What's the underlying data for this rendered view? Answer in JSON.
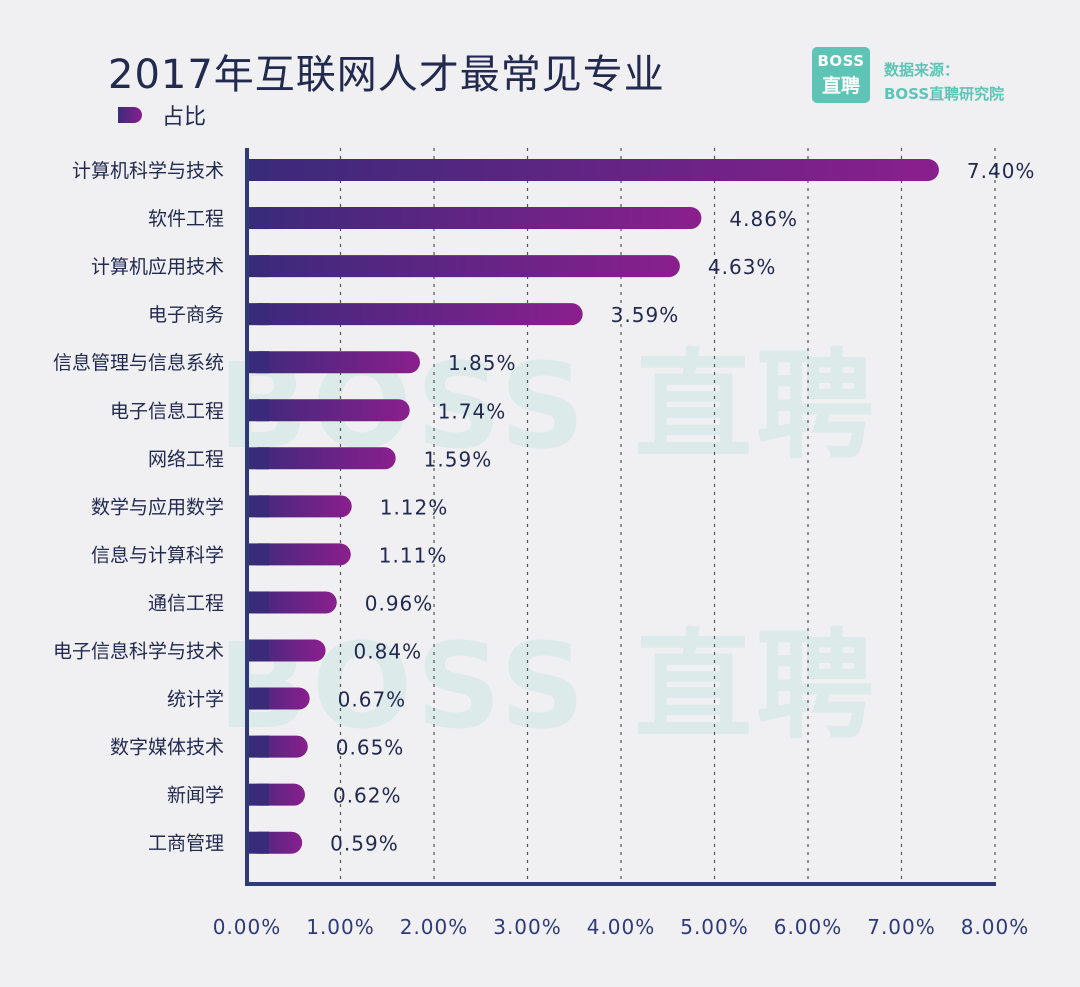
{
  "title": "2017年互联网人才最常见专业",
  "legend": {
    "label": "占比"
  },
  "logo": {
    "top": "BOSS",
    "bottom": "直聘"
  },
  "source": {
    "line1": "数据来源：",
    "line2": "BOSS直聘研究院"
  },
  "watermark": "BOSS 直聘",
  "colors": {
    "bar_start": "#3a2a7a",
    "bar_end": "#8a1f8d",
    "axis": "#2f3a7a",
    "text": "#232a4f",
    "accent": "#5ec4b6"
  },
  "chart_data": {
    "type": "bar",
    "orientation": "horizontal",
    "title": "2017年互联网人才最常见专业",
    "series": [
      {
        "name": "占比"
      }
    ],
    "categories": [
      "计算机科学与技术",
      "软件工程",
      "计算机应用技术",
      "电子商务",
      "信息管理与信息系统",
      "电子信息工程",
      "网络工程",
      "数学与应用数学",
      "信息与计算科学",
      "通信工程",
      "电子信息科学与技术",
      "统计学",
      "数字媒体技术",
      "新闻学",
      "工商管理"
    ],
    "values": [
      7.4,
      4.86,
      4.63,
      3.59,
      1.85,
      1.74,
      1.59,
      1.12,
      1.11,
      0.96,
      0.84,
      0.67,
      0.65,
      0.62,
      0.59
    ],
    "value_labels": [
      "7.40%",
      "4.86%",
      "4.63%",
      "3.59%",
      "1.85%",
      "1.74%",
      "1.59%",
      "1.12%",
      "1.11%",
      "0.96%",
      "0.84%",
      "0.67%",
      "0.65%",
      "0.62%",
      "0.59%"
    ],
    "xlim": [
      0,
      8
    ],
    "x_ticks": [
      "0.00%",
      "1.00%",
      "2.00%",
      "3.00%",
      "4.00%",
      "5.00%",
      "6.00%",
      "7.00%",
      "8.00%"
    ],
    "grid": true,
    "legend_position": "top-left"
  }
}
